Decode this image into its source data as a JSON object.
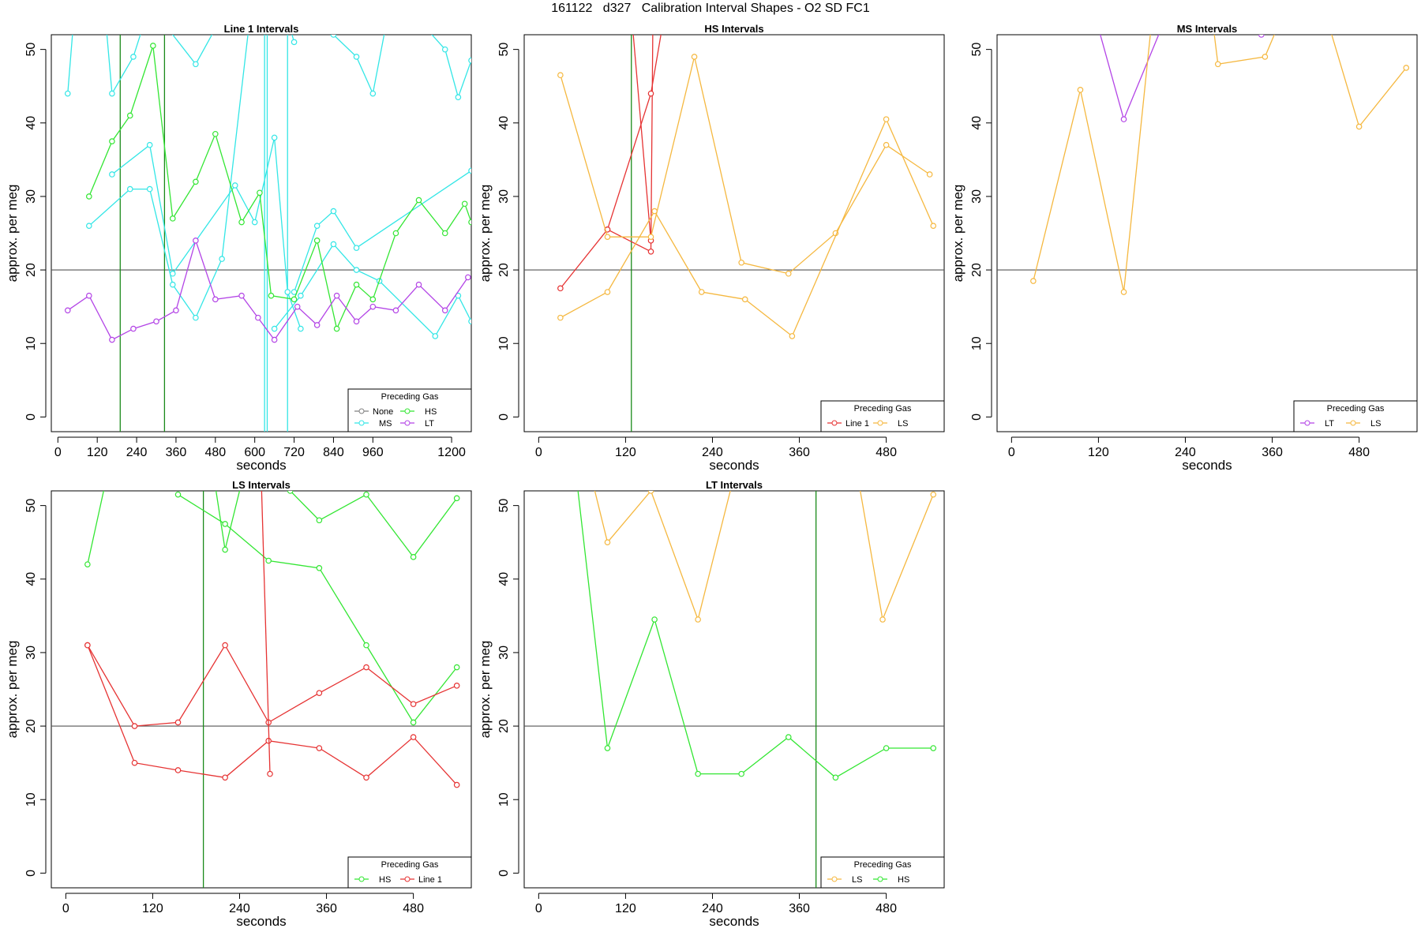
{
  "title": "161122   d327   Calibration Interval Shapes - O2 SD FC1",
  "colors": {
    "None": "#808080",
    "MS": "#33e6e6",
    "HS": "#33e633",
    "LT": "#b344e6",
    "Line 1": "#e63333",
    "LS": "#f5b840",
    "vline": "#1a8a1a"
  },
  "chart_data": [
    {
      "type": "line",
      "title": "Line 1 Intervals",
      "xlabel": "seconds",
      "ylabel": "approx. per meg",
      "xlim": [
        -20,
        1260
      ],
      "ylim": [
        -2,
        52
      ],
      "xticks": [
        0,
        120,
        240,
        360,
        480,
        600,
        720,
        840,
        960,
        1200
      ],
      "yticks": [
        0,
        10,
        20,
        30,
        40,
        50
      ],
      "hline": 20,
      "vlines": [
        {
          "x": 190,
          "color": "HS"
        },
        {
          "x": 325,
          "color": "HS"
        },
        {
          "x": 630,
          "color": "MS"
        },
        {
          "x": 638,
          "color": "MS"
        },
        {
          "x": 700,
          "color": "MS"
        }
      ],
      "legend": {
        "title": "Preceding Gas",
        "columns": 2,
        "entries": [
          "None",
          "HS",
          "MS",
          "LT"
        ]
      },
      "series": [
        {
          "name": "MS",
          "x": [
            30,
            95,
            165,
            230,
            280,
            420,
            630,
            720
          ],
          "y": [
            44,
            80,
            44,
            49,
            56,
            48,
            65,
            51
          ]
        },
        {
          "name": "MS",
          "x": [
            95,
            220,
            280,
            350,
            420,
            500,
            600
          ],
          "y": [
            26,
            31,
            31,
            18,
            13.5,
            21.5,
            60
          ]
        },
        {
          "name": "MS",
          "x": [
            165,
            280,
            350,
            540,
            600,
            660,
            700,
            740
          ],
          "y": [
            33,
            37,
            19.5,
            31.5,
            26.5,
            38,
            17,
            12
          ]
        },
        {
          "name": "MS",
          "x": [
            660,
            740,
            840,
            910,
            980,
            1150,
            1220,
            1260
          ],
          "y": [
            12,
            16.5,
            23.5,
            20,
            18.5,
            11,
            16.5,
            13
          ]
        },
        {
          "name": "MS",
          "x": [
            720,
            790,
            840,
            910,
            1260
          ],
          "y": [
            17,
            26,
            28,
            23,
            33.5
          ]
        },
        {
          "name": "MS",
          "x": [
            840,
            910,
            960,
            1020,
            1180,
            1220,
            1260
          ],
          "y": [
            52,
            49,
            44,
            58,
            50,
            43.5,
            48.5
          ]
        },
        {
          "name": "HS",
          "x": [
            95,
            165,
            220,
            290,
            350,
            420,
            480,
            560,
            615,
            650,
            720,
            790,
            850,
            910,
            960,
            1030,
            1100,
            1180,
            1240,
            1260
          ],
          "y": [
            30,
            37.5,
            41,
            50.5,
            27,
            32,
            38.5,
            26.5,
            30.5,
            16.5,
            16,
            24,
            12,
            18,
            16,
            25,
            29.5,
            25,
            29,
            26.5
          ]
        },
        {
          "name": "LT",
          "x": [
            30,
            95,
            165,
            230,
            300,
            360,
            420,
            480,
            560,
            610,
            660,
            730,
            790,
            850,
            910,
            960,
            1030,
            1100,
            1180,
            1250
          ],
          "y": [
            14.5,
            16.5,
            10.5,
            12,
            13,
            14.5,
            24,
            16,
            16.5,
            13.5,
            10.5,
            15,
            12.5,
            16.5,
            13,
            15,
            14.5,
            18,
            14.5,
            19
          ]
        }
      ]
    },
    {
      "type": "line",
      "title": "HS Intervals",
      "xlabel": "seconds",
      "ylabel": "approx. per meg",
      "xlim": [
        -20,
        560
      ],
      "ylim": [
        -2,
        52
      ],
      "xticks": [
        0,
        120,
        240,
        360,
        480
      ],
      "yticks": [
        0,
        10,
        20,
        30,
        40,
        50
      ],
      "hline": 20,
      "vlines": [
        {
          "x": 128,
          "color": "HS"
        }
      ],
      "legend": {
        "title": "Preceding Gas",
        "columns": 2,
        "entries": [
          "Line 1",
          "LS"
        ]
      },
      "series": [
        {
          "name": "Line 1",
          "x": [
            30,
            95,
            155,
            160
          ],
          "y": [
            17.5,
            25.5,
            22.5,
            80
          ]
        },
        {
          "name": "Line 1",
          "x": [
            95,
            155,
            200
          ],
          "y": [
            25.5,
            44,
            70
          ]
        },
        {
          "name": "Line 1",
          "x": [
            155,
            115
          ],
          "y": [
            24,
            70
          ]
        },
        {
          "name": "LS",
          "x": [
            30,
            95,
            155,
            215,
            280,
            345,
            410,
            480,
            540
          ],
          "y": [
            46.5,
            24.5,
            24.5,
            49,
            21,
            19.5,
            25,
            37,
            33
          ]
        },
        {
          "name": "LS",
          "x": [
            30,
            95,
            160,
            225,
            285,
            350,
            480,
            545
          ],
          "y": [
            13.5,
            17,
            28,
            17,
            16,
            11,
            40.5,
            26
          ]
        }
      ]
    },
    {
      "type": "line",
      "title": "MS Intervals",
      "xlabel": "seconds",
      "ylabel": "approx. per meg",
      "xlim": [
        -20,
        560
      ],
      "ylim": [
        -2,
        52
      ],
      "xticks": [
        0,
        120,
        240,
        360,
        480
      ],
      "yticks": [
        0,
        10,
        20,
        30,
        40,
        50
      ],
      "hline": 20,
      "vlines": [],
      "legend": {
        "title": "Preceding Gas",
        "columns": 2,
        "entries": [
          "LT",
          "LS"
        ]
      },
      "series": [
        {
          "name": "LT",
          "x": [
            100,
            155,
            220,
            345,
            380
          ],
          "y": [
            60,
            40.5,
            56,
            52,
            56
          ]
        },
        {
          "name": "LS",
          "x": [
            30,
            95,
            155,
            200
          ],
          "y": [
            18.5,
            44.5,
            17,
            60
          ]
        },
        {
          "name": "LS",
          "x": [
            270,
            285,
            350,
            380
          ],
          "y": [
            60,
            48,
            49,
            56
          ]
        },
        {
          "name": "LS",
          "x": [
            430,
            480,
            545
          ],
          "y": [
            56,
            39.5,
            47.5
          ]
        }
      ]
    },
    {
      "type": "line",
      "title": "LS Intervals",
      "xlabel": "seconds",
      "ylabel": "approx. per meg",
      "xlim": [
        -20,
        560
      ],
      "ylim": [
        -2,
        52
      ],
      "xticks": [
        0,
        120,
        240,
        360,
        480
      ],
      "yticks": [
        0,
        10,
        20,
        30,
        40,
        50
      ],
      "hline": 20,
      "vlines": [
        {
          "x": 190,
          "color": "HS"
        }
      ],
      "legend": {
        "title": "Preceding Gas",
        "columns": 2,
        "entries": [
          "HS",
          "Line 1"
        ]
      },
      "series": [
        {
          "name": "HS",
          "x": [
            30,
            70
          ],
          "y": [
            42,
            60
          ]
        },
        {
          "name": "HS",
          "x": [
            155,
            220,
            280,
            350,
            415,
            480,
            540
          ],
          "y": [
            51.5,
            47.5,
            42.5,
            41.5,
            31,
            20.5,
            28
          ]
        },
        {
          "name": "HS",
          "x": [
            195,
            220,
            260
          ],
          "y": [
            60,
            44,
            60
          ]
        },
        {
          "name": "HS",
          "x": [
            310,
            350,
            415,
            480,
            540
          ],
          "y": [
            52,
            48,
            51.5,
            43,
            51
          ]
        },
        {
          "name": "Line 1",
          "x": [
            30,
            95,
            155,
            220,
            280,
            350,
            415,
            480,
            540
          ],
          "y": [
            31,
            15,
            14,
            13,
            18,
            17,
            13,
            18.5,
            12
          ]
        },
        {
          "name": "Line 1",
          "x": [
            30,
            95,
            155,
            220,
            280,
            350,
            415,
            480,
            540
          ],
          "y": [
            31,
            20,
            20.5,
            31,
            20.5,
            24.5,
            28,
            23,
            25.5
          ]
        },
        {
          "name": "Line 1",
          "x": [
            268,
            282
          ],
          "y": [
            60,
            13.5
          ]
        }
      ]
    },
    {
      "type": "line",
      "title": "LT Intervals",
      "xlabel": "seconds",
      "ylabel": "approx. per meg",
      "xlim": [
        -20,
        560
      ],
      "ylim": [
        -2,
        52
      ],
      "xticks": [
        0,
        120,
        240,
        360,
        480
      ],
      "yticks": [
        0,
        10,
        20,
        30,
        40,
        50
      ],
      "hline": 20,
      "vlines": [
        {
          "x": 383,
          "color": "HS"
        }
      ],
      "legend": {
        "title": "Preceding Gas",
        "columns": 2,
        "entries": [
          "LS",
          "HS"
        ]
      },
      "series": [
        {
          "name": "LS",
          "x": [
            70,
            95,
            155,
            220,
            285
          ],
          "y": [
            55,
            45,
            52,
            34.5,
            60
          ]
        },
        {
          "name": "LS",
          "x": [
            430,
            475,
            545
          ],
          "y": [
            60,
            34.5,
            51.5
          ]
        },
        {
          "name": "HS",
          "x": [
            45,
            95,
            160,
            220,
            280,
            345,
            410,
            480,
            545
          ],
          "y": [
            60,
            17,
            34.5,
            13.5,
            13.5,
            18.5,
            13,
            17,
            17
          ]
        }
      ]
    }
  ]
}
